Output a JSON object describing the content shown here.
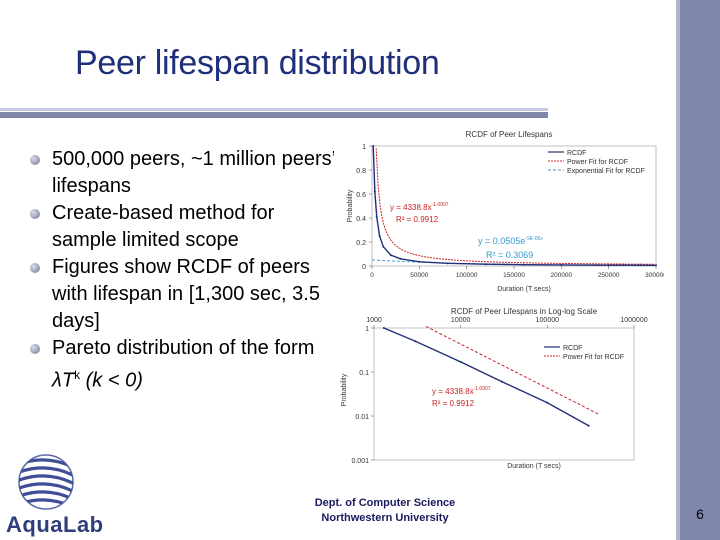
{
  "slide": {
    "title": "Peer lifespan distribution",
    "page_number": "6",
    "footer_line1": "Dept. of Computer Science",
    "footer_line2": "Northwestern University",
    "logo_text": "AquaLab",
    "bullets": [
      {
        "text": "500,000 peers, ~1 million peers’ lifespans"
      },
      {
        "text": "Create-based method for sample limited scope"
      },
      {
        "text": "Figures show RCDF of peers with lifespan in [1,300 sec, 3.5 days]"
      },
      {
        "text_prefix": "Pareto distribution of the form ",
        "formula_lambda_t": "λT",
        "formula_k": "k",
        "formula_suffix": " (k < 0)"
      }
    ]
  },
  "colors": {
    "title": "#1f2f7a",
    "accent_bar": "#7f87ab",
    "rcdf": "#1f2f7a",
    "power_fit": "#cc2222"
  },
  "chart_data": [
    {
      "type": "line",
      "title": "RCDF of Peer Lifespans",
      "xlabel": "Duration (T secs)",
      "ylabel": "Probability",
      "xlim": [
        0,
        300000
      ],
      "ylim": [
        0,
        1
      ],
      "x_ticks": [
        "0",
        "50000",
        "100000",
        "150000",
        "200000",
        "250000",
        "300000"
      ],
      "y_ticks": [
        "0",
        "0.2",
        "0.4",
        "0.6",
        "0.8",
        "1"
      ],
      "legend": [
        "RCDF",
        "Power Fit for RCDF",
        "Exponential Fit for RCDF"
      ],
      "annotations": [
        {
          "text": "y = 4338.8x",
          "sup": "-1.0007",
          "line2": "R² = 0.9912",
          "color": "#cc2222"
        },
        {
          "text": "y = 0.0505e",
          "sup": "-9E-06x",
          "line2": "R² = 0.3069",
          "color": "#3399cc"
        }
      ],
      "series": [
        {
          "name": "RCDF",
          "x": [
            1300,
            3000,
            5000,
            8000,
            12000,
            20000,
            30000,
            50000,
            80000,
            120000,
            160000,
            200000,
            250000,
            300000
          ],
          "y": [
            1.0,
            0.62,
            0.41,
            0.25,
            0.16,
            0.09,
            0.06,
            0.035,
            0.022,
            0.015,
            0.011,
            0.009,
            0.007,
            0.006
          ]
        }
      ]
    },
    {
      "type": "line",
      "title": "RCDF of Peer Lifespans in Log-log Scale",
      "xlabel": "Duration (T secs)",
      "ylabel": "Probability",
      "x_ticks": [
        "1000",
        "10000",
        "100000",
        "1000000"
      ],
      "y_ticks": [
        "1",
        "0.1",
        "0.01",
        "0.001"
      ],
      "legend": [
        "RCDF",
        "Power Fit for RCDF"
      ],
      "annotations": [
        {
          "text": "y = 4338.8x",
          "sup": "-1.0007",
          "line2": "R² = 0.9912",
          "color": "#cc2222"
        }
      ],
      "series": [
        {
          "name": "RCDF",
          "x": [
            1300,
            3000,
            10000,
            30000,
            100000,
            300000
          ],
          "y": [
            1.0,
            0.5,
            0.17,
            0.06,
            0.02,
            0.006
          ]
        }
      ]
    }
  ]
}
